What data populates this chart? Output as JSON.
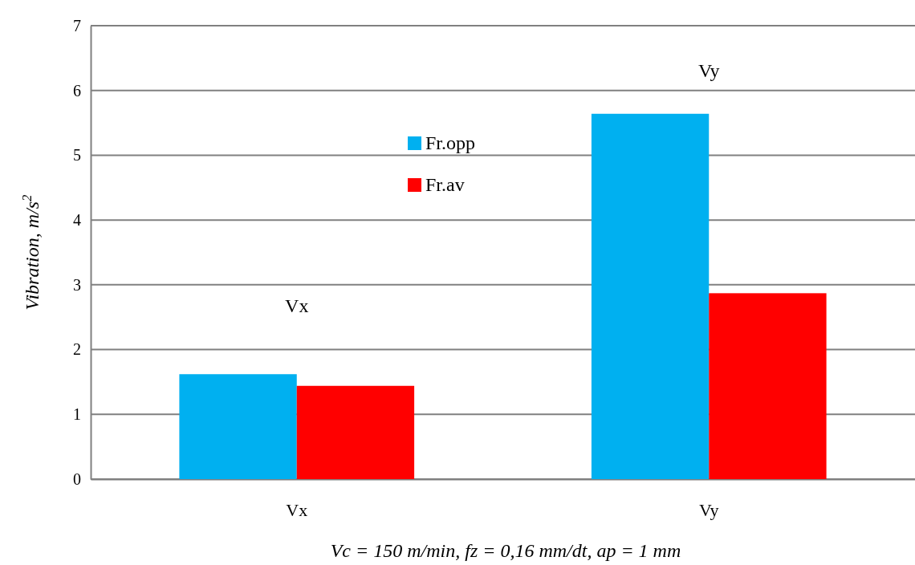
{
  "chart_data": {
    "type": "bar",
    "xlabel": "Vc = 150 m/min, fz = 0,16 mm/dt, ap = 1 mm",
    "ylabel": "Vibration, m/s$^{2}$",
    "categories": [
      "Vx",
      "Vy"
    ],
    "series": [
      {
        "name": "Fr.opp",
        "color": "#00b0f0",
        "values": [
          1.62,
          5.64
        ]
      },
      {
        "name": "Fr.av",
        "color": "#ff0000",
        "values": [
          1.44,
          2.87
        ]
      }
    ],
    "ylim": [
      0,
      7
    ],
    "yticks": [
      0,
      1,
      2,
      3,
      4,
      5,
      6,
      7
    ],
    "grid": "y",
    "legend": "top",
    "annotations": [
      "Vx",
      "Vy"
    ]
  }
}
